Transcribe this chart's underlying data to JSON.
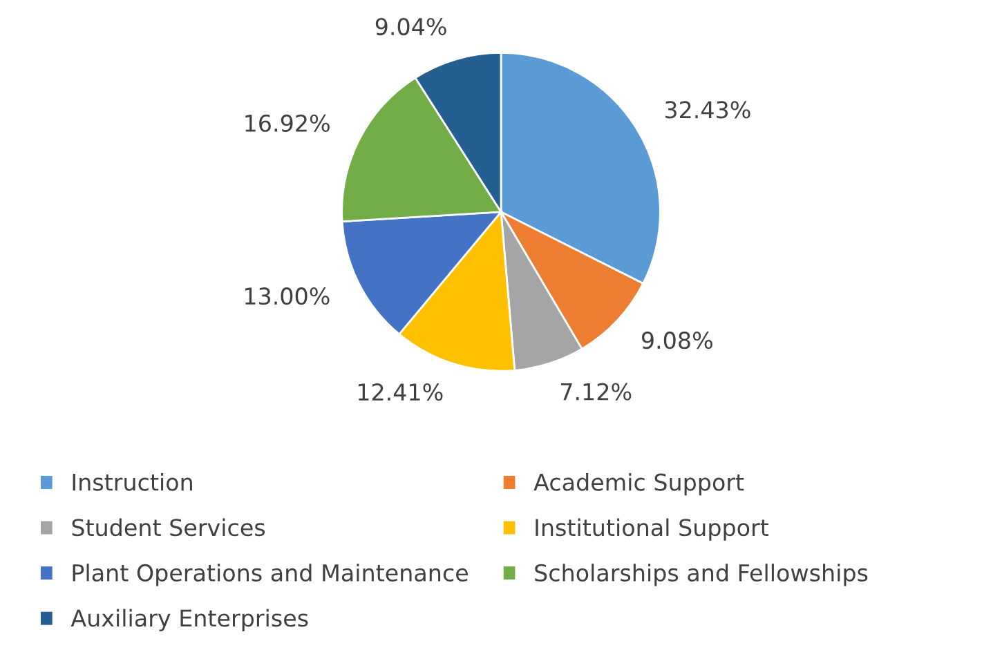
{
  "chart_data": {
    "type": "pie",
    "categories": [
      "Instruction",
      "Academic Support",
      "Student Services",
      "Institutional Support",
      "Plant Operations and Maintenance",
      "Scholarships and Fellowships",
      "Auxiliary Enterprises"
    ],
    "values": [
      32.43,
      9.08,
      7.12,
      12.41,
      13.0,
      16.92,
      9.04
    ],
    "value_labels": [
      "32.43%",
      "9.08%",
      "7.12%",
      "12.41%",
      "13.00%",
      "16.92%",
      "9.04%"
    ],
    "colors": [
      "#5b9bd5",
      "#ed7d31",
      "#a5a5a5",
      "#ffc000",
      "#4472c4",
      "#70ad47",
      "#255e91"
    ],
    "legend": "bottom"
  }
}
